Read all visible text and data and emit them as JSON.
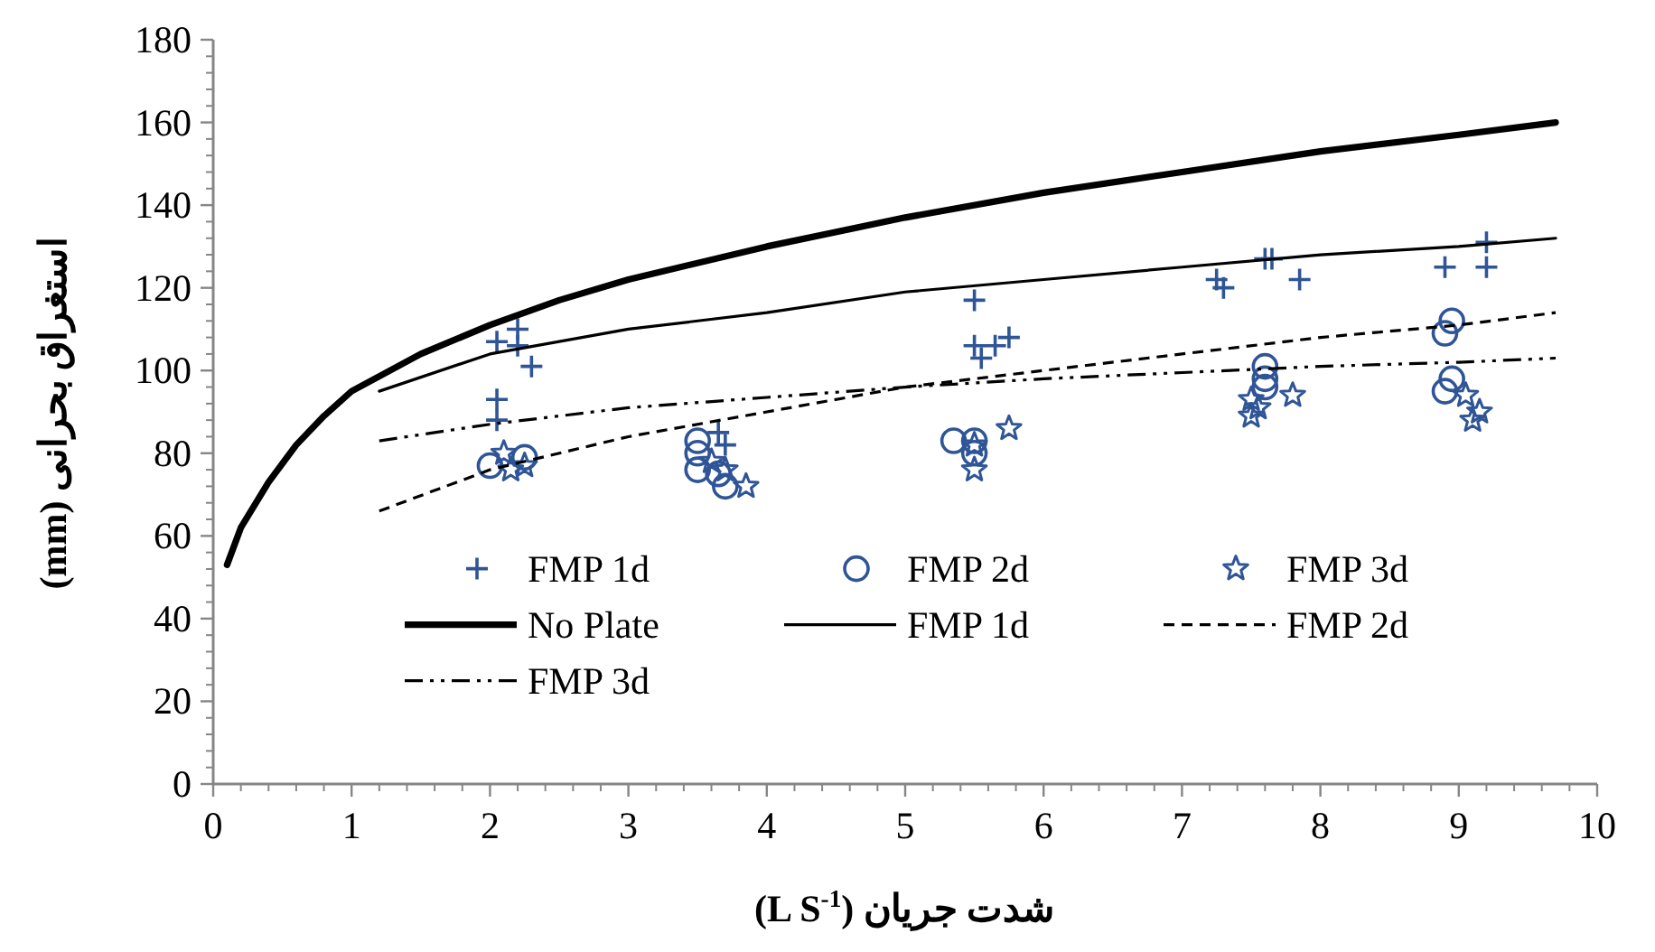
{
  "chart_data": {
    "type": "scatter",
    "xlabel": "شدت جریان (L S$^{-1}$)",
    "ylabel": "استغراق بحرانی (mm)",
    "xlim": [
      0,
      10
    ],
    "xticks": [
      0,
      1,
      2,
      3,
      4,
      5,
      6,
      7,
      8,
      9,
      10
    ],
    "ylim": [
      0,
      180
    ],
    "yticks": [
      0,
      20,
      40,
      60,
      80,
      100,
      120,
      140,
      160,
      180
    ],
    "grid": false,
    "legend": "bottom right",
    "series": [
      {
        "name": "FMP 1d",
        "type": "scatter",
        "marker": "cross",
        "color": "#2f5597",
        "x": [
          2.05,
          2.05,
          2.05,
          2.2,
          2.2,
          2.3,
          3.65,
          3.7,
          5.5,
          5.5,
          5.55,
          5.65,
          5.75,
          7.25,
          7.3,
          7.6,
          7.65,
          7.85,
          8.9,
          9.2,
          9.2
        ],
        "values": [
          93,
          88,
          107,
          110,
          106,
          101,
          85,
          82,
          117,
          106,
          103,
          106,
          108,
          122,
          120,
          127,
          127,
          122,
          125,
          131,
          125
        ]
      },
      {
        "name": "FMP 2d",
        "type": "scatter",
        "marker": "circle",
        "color": "#2f5597",
        "x": [
          2.0,
          2.25,
          3.5,
          3.5,
          3.5,
          3.7,
          3.65,
          5.35,
          5.5,
          5.5,
          7.6,
          7.6,
          7.6,
          8.9,
          8.95,
          8.9,
          8.95
        ],
        "values": [
          77,
          79,
          83,
          80,
          76,
          72,
          75,
          83,
          83,
          80,
          101,
          98,
          96,
          109,
          112,
          95,
          98
        ]
      },
      {
        "name": "FMP 3d",
        "type": "scatter",
        "marker": "star",
        "color": "#2f5597",
        "x": [
          2.1,
          2.15,
          2.25,
          3.6,
          3.7,
          3.85,
          5.5,
          5.5,
          5.75,
          7.5,
          7.5,
          7.55,
          7.8,
          9.05,
          9.15,
          9.1
        ],
        "values": [
          80,
          76,
          77,
          78,
          76,
          72,
          82,
          76,
          86,
          93,
          89,
          91,
          94,
          94,
          90,
          88
        ]
      },
      {
        "name": "No Plate",
        "type": "line",
        "marker": "none",
        "line_style": "solid",
        "color": "#000000",
        "x": [
          0.1,
          0.2,
          0.4,
          0.6,
          0.8,
          1,
          1.5,
          2,
          2.5,
          3,
          4,
          5,
          6,
          7,
          8,
          9,
          9.7
        ],
        "values": [
          53,
          62,
          73,
          82,
          89,
          95,
          104,
          111,
          117,
          122,
          130,
          137,
          143,
          148,
          153,
          157,
          160
        ]
      },
      {
        "name": "FMP 1d",
        "type": "line",
        "marker": "none",
        "line_style": "solid",
        "color": "#000000",
        "x": [
          1.2,
          2,
          3,
          4,
          5,
          6,
          7,
          8,
          9,
          9.7
        ],
        "values": [
          95,
          104,
          110,
          114,
          119,
          122,
          125,
          128,
          130,
          132
        ]
      },
      {
        "name": "FMP 2d",
        "type": "line",
        "marker": "none",
        "line_style": "dashed",
        "color": "#000000",
        "x": [
          1.2,
          2,
          3,
          4,
          5,
          6,
          7,
          8,
          9,
          9.7
        ],
        "values": [
          66,
          76,
          84,
          90,
          96,
          100,
          104,
          108,
          111,
          114
        ]
      },
      {
        "name": "FMP 3d",
        "type": "line",
        "marker": "none",
        "line_style": "dashdot",
        "color": "#000000",
        "x": [
          1.2,
          2,
          3,
          4,
          5,
          6,
          7,
          8,
          9,
          9.7
        ],
        "values": [
          83,
          87,
          91,
          93.5,
          96,
          98,
          99.5,
          101,
          102,
          103
        ]
      }
    ]
  }
}
